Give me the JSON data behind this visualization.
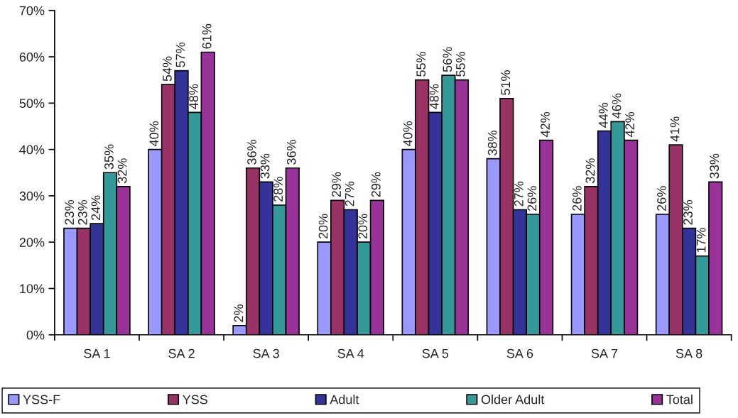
{
  "chart_data": {
    "type": "bar",
    "categories": [
      "SA 1",
      "SA 2",
      "SA 3",
      "SA 4",
      "SA 5",
      "SA 6",
      "SA 7",
      "SA 8"
    ],
    "series": [
      {
        "name": "YSS-F",
        "color": "#9999ff",
        "values": [
          23,
          40,
          2,
          20,
          40,
          38,
          26,
          26
        ],
        "value_labels": [
          "23%",
          "40%",
          "2%",
          "20%",
          "40%",
          "38%",
          "26%",
          "26%"
        ]
      },
      {
        "name": "YSS",
        "color": "#993366",
        "values": [
          23,
          54,
          36,
          29,
          55,
          51,
          32,
          41
        ],
        "value_labels": [
          "23%",
          "54%",
          "36%",
          "29%",
          "55%",
          "51%",
          "32%",
          "41%"
        ]
      },
      {
        "name": "Adult",
        "color": "#333399",
        "values": [
          24,
          57,
          33,
          27,
          48,
          27,
          44,
          23
        ],
        "value_labels": [
          "24%",
          "57%",
          "33%",
          "27%",
          "48%",
          "27%",
          "44%",
          "23%"
        ]
      },
      {
        "name": "Older Adult",
        "color": "#339999",
        "values": [
          35,
          48,
          28,
          20,
          56,
          26,
          46,
          17
        ],
        "value_labels": [
          "35%",
          "48%",
          "28%",
          "20%",
          "56%",
          "26%",
          "46%",
          "17%"
        ]
      },
      {
        "name": "Total",
        "color": "#993399",
        "values": [
          32,
          61,
          36,
          29,
          55,
          42,
          42,
          33
        ],
        "value_labels": [
          "32%",
          "61%",
          "36%",
          "29%",
          "55%",
          "42%",
          "42%",
          "33%"
        ]
      }
    ],
    "ylim": [
      0,
      70
    ],
    "yticks": [
      {
        "value": 0,
        "label": "0%"
      },
      {
        "value": 10,
        "label": "10%"
      },
      {
        "value": 20,
        "label": "20%"
      },
      {
        "value": 30,
        "label": "30%"
      },
      {
        "value": 40,
        "label": "40%"
      },
      {
        "value": 50,
        "label": "50%"
      },
      {
        "value": 60,
        "label": "60%"
      },
      {
        "value": 70,
        "label": "70%"
      }
    ],
    "grid": false,
    "legend": "bottom"
  }
}
